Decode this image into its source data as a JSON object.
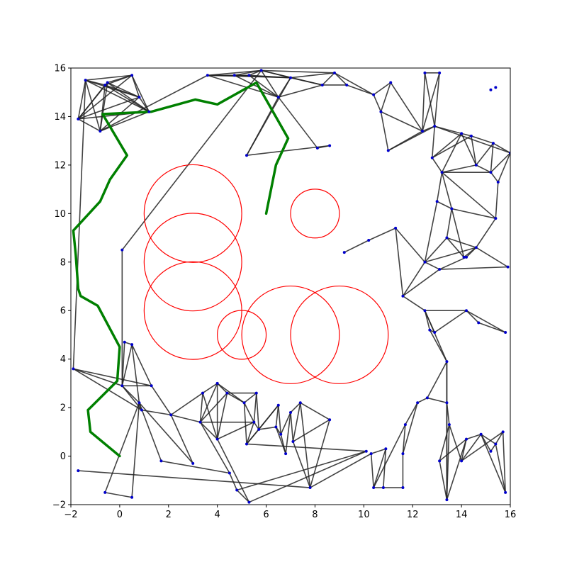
{
  "chart_data": {
    "type": "scatter",
    "title": "",
    "xlabel": "",
    "ylabel": "",
    "xlim": [
      -2,
      16
    ],
    "ylim": [
      -2,
      16
    ],
    "xticks": [
      -2,
      0,
      2,
      4,
      6,
      8,
      10,
      12,
      14,
      16
    ],
    "yticks": [
      -2,
      0,
      2,
      4,
      6,
      8,
      10,
      12,
      14,
      16
    ],
    "grid": false,
    "colors": {
      "node": "#0000cc",
      "edge": "#222222",
      "path": "#008000",
      "obstacle": "#ff0000"
    },
    "obstacles": [
      {
        "cx": 3,
        "cy": 10,
        "r": 2
      },
      {
        "cx": 3,
        "cy": 8,
        "r": 2
      },
      {
        "cx": 3,
        "cy": 6,
        "r": 2
      },
      {
        "cx": 8,
        "cy": 10,
        "r": 1
      },
      {
        "cx": 5,
        "cy": 5,
        "r": 1
      },
      {
        "cx": 7,
        "cy": 5,
        "r": 2
      },
      {
        "cx": 9,
        "cy": 5,
        "r": 2
      }
    ],
    "path": [
      [
        6,
        10
      ],
      [
        6.4,
        12
      ],
      [
        6.9,
        13.1
      ],
      [
        5.6,
        15.4
      ],
      [
        4,
        14.5
      ],
      [
        3.1,
        14.7
      ],
      [
        1.3,
        14.2
      ],
      [
        -0.7,
        14.1
      ],
      [
        0.3,
        12.4
      ],
      [
        -0.4,
        11.4
      ],
      [
        -0.8,
        10.5
      ],
      [
        -1.9,
        9.3
      ],
      [
        -1.8,
        8.3
      ],
      [
        -1.7,
        6.9
      ],
      [
        -1.6,
        6.6
      ],
      [
        -0.9,
        6.2
      ],
      [
        0,
        4.5
      ],
      [
        -0.1,
        3.1
      ],
      [
        -1.3,
        1.9
      ],
      [
        -1.2,
        1
      ],
      [
        0,
        0
      ]
    ],
    "nodes": [
      [
        -1.4,
        15.5
      ],
      [
        -0.6,
        15.3
      ],
      [
        0.5,
        15.7
      ],
      [
        -1.7,
        13.9
      ],
      [
        -0.8,
        13.4
      ],
      [
        0.8,
        14.8
      ],
      [
        1.2,
        14.2
      ],
      [
        -0.5,
        15.4
      ],
      [
        3.6,
        15.7
      ],
      [
        4.7,
        15.7
      ],
      [
        5.3,
        15.7
      ],
      [
        5.8,
        15.9
      ],
      [
        6.5,
        14.8
      ],
      [
        7,
        15.6
      ],
      [
        8.3,
        15.3
      ],
      [
        8.8,
        15.8
      ],
      [
        9.3,
        15.3
      ],
      [
        5.2,
        12.4
      ],
      [
        8.1,
        12.7
      ],
      [
        8.6,
        12.8
      ],
      [
        10.4,
        14.9
      ],
      [
        11.1,
        15.4
      ],
      [
        10.7,
        14.2
      ],
      [
        11,
        12.6
      ],
      [
        12.4,
        13.4
      ],
      [
        13.1,
        15.8
      ],
      [
        12.5,
        15.8
      ],
      [
        12.9,
        13.6
      ],
      [
        12.8,
        12.3
      ],
      [
        14,
        13.3
      ],
      [
        14.4,
        13.2
      ],
      [
        14.6,
        12
      ],
      [
        15.3,
        12.9
      ],
      [
        15.2,
        11.7
      ],
      [
        15.5,
        11.3
      ],
      [
        16,
        12.5
      ],
      [
        13.2,
        11.7
      ],
      [
        15.4,
        9.8
      ],
      [
        15.2,
        15.1
      ],
      [
        15.4,
        15.2
      ],
      [
        13.6,
        10.2
      ],
      [
        13,
        10.5
      ],
      [
        13.4,
        9
      ],
      [
        14.1,
        8.2
      ],
      [
        14.6,
        8.6
      ],
      [
        12.5,
        8
      ],
      [
        13.1,
        7.7
      ],
      [
        15.9,
        7.8
      ],
      [
        14.2,
        8.2
      ],
      [
        11.6,
        6.6
      ],
      [
        12.5,
        6
      ],
      [
        12.7,
        5.2
      ],
      [
        12.9,
        5.1
      ],
      [
        14.2,
        6
      ],
      [
        14.7,
        5.5
      ],
      [
        15.8,
        5.1
      ],
      [
        13.4,
        3.9
      ],
      [
        9.2,
        8.4
      ],
      [
        10.2,
        8.9
      ],
      [
        11.3,
        9.4
      ],
      [
        0.1,
        8.5
      ],
      [
        0.2,
        4.7
      ],
      [
        0.5,
        4.6
      ],
      [
        0.1,
        2.9
      ],
      [
        0.8,
        2.2
      ],
      [
        0.9,
        1.9
      ],
      [
        1.3,
        2.9
      ],
      [
        2.1,
        1.7
      ],
      [
        -1.9,
        3.6
      ],
      [
        3.4,
        2.6
      ],
      [
        4,
        3
      ],
      [
        3.3,
        1.4
      ],
      [
        4,
        0.7
      ],
      [
        4.4,
        2.6
      ],
      [
        5.1,
        2.2
      ],
      [
        5.6,
        2.6
      ],
      [
        5.5,
        1.4
      ],
      [
        5.2,
        0.5
      ],
      [
        5.7,
        1.1
      ],
      [
        6.5,
        2.1
      ],
      [
        6.4,
        1.2
      ],
      [
        6.6,
        0.9
      ],
      [
        6.8,
        0.1
      ],
      [
        7,
        1.8
      ],
      [
        7.1,
        0.6
      ],
      [
        7.4,
        2.2
      ],
      [
        8.6,
        1.5
      ],
      [
        7.8,
        -1.3
      ],
      [
        -1.7,
        -0.6
      ],
      [
        -0.6,
        -1.5
      ],
      [
        0.5,
        -1.7
      ],
      [
        1.7,
        -0.2
      ],
      [
        3,
        -0.3
      ],
      [
        4.5,
        -0.7
      ],
      [
        4.8,
        -1.4
      ],
      [
        5.3,
        -1.9
      ],
      [
        10.1,
        0.2
      ],
      [
        10.3,
        0.1
      ],
      [
        10.9,
        0.3
      ],
      [
        10.4,
        -1.3
      ],
      [
        10.8,
        -1.3
      ],
      [
        11.6,
        -1.3
      ],
      [
        11.6,
        0.1
      ],
      [
        11.7,
        1.3
      ],
      [
        12.2,
        2.2
      ],
      [
        12.6,
        2.4
      ],
      [
        13.4,
        2.2
      ],
      [
        13.5,
        1.3
      ],
      [
        13.1,
        -0.2
      ],
      [
        13.4,
        -1.8
      ],
      [
        14.2,
        0.7
      ],
      [
        14,
        -0.2
      ],
      [
        14.8,
        0.9
      ],
      [
        15.2,
        0.2
      ],
      [
        15.4,
        0.5
      ],
      [
        15.7,
        1
      ],
      [
        15.8,
        -1.5
      ]
    ],
    "edges": [
      [
        0,
        1
      ],
      [
        0,
        2
      ],
      [
        0,
        3
      ],
      [
        0,
        4
      ],
      [
        0,
        5
      ],
      [
        0,
        6
      ],
      [
        1,
        2
      ],
      [
        1,
        3
      ],
      [
        1,
        4
      ],
      [
        1,
        5
      ],
      [
        1,
        6
      ],
      [
        1,
        7
      ],
      [
        2,
        3
      ],
      [
        2,
        5
      ],
      [
        2,
        6
      ],
      [
        2,
        7
      ],
      [
        3,
        4
      ],
      [
        3,
        5
      ],
      [
        3,
        6
      ],
      [
        3,
        7
      ],
      [
        4,
        5
      ],
      [
        4,
        6
      ],
      [
        4,
        7
      ],
      [
        5,
        6
      ],
      [
        5,
        7
      ],
      [
        6,
        7
      ],
      [
        4,
        8
      ],
      [
        8,
        9
      ],
      [
        8,
        10
      ],
      [
        8,
        11
      ],
      [
        8,
        12
      ],
      [
        8,
        13
      ],
      [
        9,
        10
      ],
      [
        9,
        11
      ],
      [
        9,
        12
      ],
      [
        9,
        13
      ],
      [
        10,
        11
      ],
      [
        10,
        12
      ],
      [
        10,
        13
      ],
      [
        11,
        12
      ],
      [
        11,
        13
      ],
      [
        11,
        14
      ],
      [
        11,
        15
      ],
      [
        12,
        13
      ],
      [
        12,
        14
      ],
      [
        13,
        14
      ],
      [
        13,
        15
      ],
      [
        14,
        15
      ],
      [
        14,
        16
      ],
      [
        15,
        16
      ],
      [
        15,
        20
      ],
      [
        16,
        20
      ],
      [
        12,
        17
      ],
      [
        12,
        18
      ],
      [
        17,
        19
      ],
      [
        18,
        19
      ],
      [
        17,
        13
      ],
      [
        20,
        21
      ],
      [
        20,
        22
      ],
      [
        21,
        22
      ],
      [
        22,
        23
      ],
      [
        22,
        24
      ],
      [
        21,
        24
      ],
      [
        23,
        24
      ],
      [
        24,
        25
      ],
      [
        24,
        26
      ],
      [
        25,
        26
      ],
      [
        26,
        27
      ],
      [
        27,
        28
      ],
      [
        27,
        29
      ],
      [
        28,
        29
      ],
      [
        29,
        30
      ],
      [
        29,
        31
      ],
      [
        30,
        31
      ],
      [
        30,
        32
      ],
      [
        31,
        32
      ],
      [
        31,
        33
      ],
      [
        32,
        33
      ],
      [
        33,
        34
      ],
      [
        33,
        35
      ],
      [
        34,
        35
      ],
      [
        32,
        35
      ],
      [
        28,
        36
      ],
      [
        36,
        37
      ],
      [
        33,
        36
      ],
      [
        31,
        36
      ],
      [
        27,
        35
      ],
      [
        24,
        27
      ],
      [
        23,
        27
      ],
      [
        34,
        37
      ],
      [
        28,
        30
      ],
      [
        29,
        36
      ],
      [
        25,
        27
      ],
      [
        36,
        40
      ],
      [
        40,
        41
      ],
      [
        40,
        42
      ],
      [
        40,
        43
      ],
      [
        40,
        37
      ],
      [
        42,
        43
      ],
      [
        42,
        44
      ],
      [
        43,
        44
      ],
      [
        44,
        47
      ],
      [
        45,
        46
      ],
      [
        45,
        42
      ],
      [
        46,
        47
      ],
      [
        45,
        44
      ],
      [
        46,
        48
      ],
      [
        48,
        44
      ],
      [
        37,
        44
      ],
      [
        41,
        45
      ],
      [
        41,
        36
      ],
      [
        45,
        49
      ],
      [
        49,
        50
      ],
      [
        49,
        59
      ],
      [
        50,
        51
      ],
      [
        50,
        52
      ],
      [
        50,
        53
      ],
      [
        51,
        52
      ],
      [
        52,
        53
      ],
      [
        53,
        54
      ],
      [
        54,
        55
      ],
      [
        53,
        55
      ],
      [
        51,
        56
      ],
      [
        56,
        50
      ],
      [
        46,
        49
      ],
      [
        57,
        58
      ],
      [
        58,
        59
      ],
      [
        59,
        45
      ],
      [
        60,
        63
      ],
      [
        60,
        11
      ],
      [
        61,
        62
      ],
      [
        61,
        63
      ],
      [
        62,
        63
      ],
      [
        62,
        64
      ],
      [
        63,
        64
      ],
      [
        63,
        65
      ],
      [
        64,
        65
      ],
      [
        62,
        66
      ],
      [
        63,
        66
      ],
      [
        66,
        67
      ],
      [
        65,
        67
      ],
      [
        67,
        69
      ],
      [
        67,
        71
      ],
      [
        68,
        63
      ],
      [
        69,
        70
      ],
      [
        69,
        71
      ],
      [
        69,
        72
      ],
      [
        70,
        71
      ],
      [
        70,
        72
      ],
      [
        70,
        73
      ],
      [
        71,
        72
      ],
      [
        71,
        73
      ],
      [
        72,
        73
      ],
      [
        73,
        74
      ],
      [
        73,
        75
      ],
      [
        74,
        75
      ],
      [
        74,
        76
      ],
      [
        75,
        76
      ],
      [
        74,
        77
      ],
      [
        76,
        77
      ],
      [
        76,
        78
      ],
      [
        77,
        78
      ],
      [
        78,
        79
      ],
      [
        78,
        80
      ],
      [
        79,
        80
      ],
      [
        79,
        81
      ],
      [
        80,
        81
      ],
      [
        80,
        82
      ],
      [
        81,
        82
      ],
      [
        82,
        83
      ],
      [
        83,
        84
      ],
      [
        84,
        85
      ],
      [
        83,
        85
      ],
      [
        84,
        86
      ],
      [
        85,
        86
      ],
      [
        86,
        87
      ],
      [
        85,
        87
      ],
      [
        87,
        88
      ],
      [
        72,
        76
      ],
      [
        71,
        76
      ],
      [
        70,
        74
      ],
      [
        77,
        79
      ],
      [
        75,
        78
      ],
      [
        81,
        83
      ],
      [
        84,
        87
      ],
      [
        89,
        90
      ],
      [
        89,
        64
      ],
      [
        90,
        64
      ],
      [
        91,
        64
      ],
      [
        92,
        64
      ],
      [
        91,
        93
      ],
      [
        93,
        94
      ],
      [
        93,
        71
      ],
      [
        94,
        95
      ],
      [
        94,
        96
      ],
      [
        95,
        96
      ],
      [
        96,
        77
      ],
      [
        92,
        67
      ],
      [
        95,
        72
      ],
      [
        87,
        97
      ],
      [
        97,
        98
      ],
      [
        97,
        99
      ],
      [
        98,
        99
      ],
      [
        98,
        100
      ],
      [
        99,
        100
      ],
      [
        100,
        101
      ],
      [
        101,
        102
      ],
      [
        102,
        103
      ],
      [
        103,
        104
      ],
      [
        102,
        104
      ],
      [
        104,
        105
      ],
      [
        105,
        106
      ],
      [
        106,
        107
      ],
      [
        107,
        108
      ],
      [
        107,
        109
      ],
      [
        108,
        109
      ],
      [
        108,
        110
      ],
      [
        109,
        110
      ],
      [
        110,
        111
      ],
      [
        110,
        112
      ],
      [
        111,
        112
      ],
      [
        112,
        113
      ],
      [
        112,
        114
      ],
      [
        113,
        114
      ],
      [
        114,
        115
      ],
      [
        114,
        116
      ],
      [
        115,
        116
      ],
      [
        115,
        117
      ],
      [
        116,
        117
      ],
      [
        116,
        118
      ],
      [
        117,
        118
      ],
      [
        118,
        119
      ],
      [
        113,
        120
      ],
      [
        99,
        103
      ],
      [
        106,
        109
      ],
      [
        111,
        115
      ],
      [
        105,
        56
      ],
      [
        106,
        56
      ],
      [
        109,
        56
      ],
      [
        107,
        111
      ],
      [
        112,
        116
      ],
      [
        68,
        66
      ],
      [
        68,
        65
      ],
      [
        68,
        0
      ]
    ]
  }
}
